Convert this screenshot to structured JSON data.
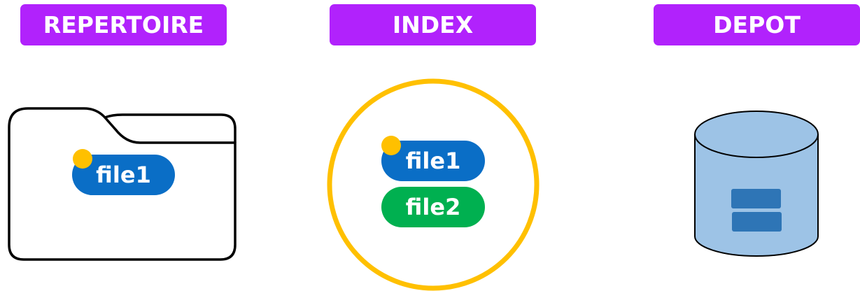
{
  "colors": {
    "header_bg": "#b122fc",
    "file1_bg": "#0a6ec6",
    "file2_bg": "#00b050",
    "modified_dot": "#ffc000",
    "index_ring": "#ffc000",
    "repo_fill": "#9dc3e6",
    "repo_blocks": "#2e75b6",
    "outline": "#000000"
  },
  "headers": {
    "working_directory": "REPERTOIRE",
    "index": "INDEX",
    "repository": "DEPOT"
  },
  "working_directory": {
    "files": [
      {
        "label": "file1",
        "modified": true
      }
    ]
  },
  "index": {
    "files": [
      {
        "label": "file1",
        "modified": true
      },
      {
        "label": "file2",
        "modified": false
      }
    ]
  }
}
